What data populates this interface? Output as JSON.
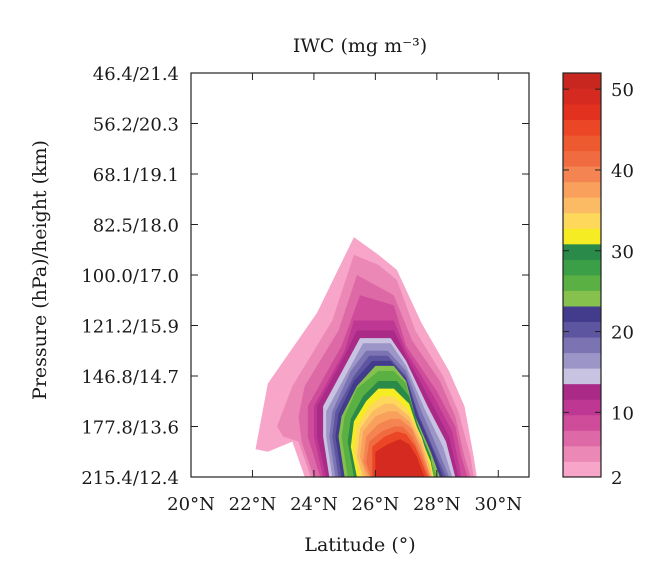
{
  "chart_data": {
    "type": "heatmap",
    "title": "IWC (mg m⁻³)",
    "xlabel": "Latitude (°)",
    "ylabel": "Pressure (hPa)/height (km)",
    "xlim": [
      20,
      31
    ],
    "x_ticks": [
      {
        "value": 20,
        "label": "20°N"
      },
      {
        "value": 22,
        "label": "22°N"
      },
      {
        "value": 24,
        "label": "24°N"
      },
      {
        "value": 26,
        "label": "26°N"
      },
      {
        "value": 28,
        "label": "28°N"
      },
      {
        "value": 30,
        "label": "30°N"
      }
    ],
    "y_ticks": [
      {
        "index": 0,
        "label": "46.4/21.4"
      },
      {
        "index": 1,
        "label": "56.2/20.3"
      },
      {
        "index": 2,
        "label": "68.1/19.1"
      },
      {
        "index": 3,
        "label": "82.5/18.0"
      },
      {
        "index": 4,
        "label": "100.0/17.0"
      },
      {
        "index": 5,
        "label": "121.2/15.9"
      },
      {
        "index": 6,
        "label": "146.8/14.7"
      },
      {
        "index": 7,
        "label": "177.8/13.6"
      },
      {
        "index": 8,
        "label": "215.4/12.4"
      }
    ],
    "colorbar": {
      "min": 2,
      "max": 52,
      "tick_labels": [
        "2",
        "10",
        "20",
        "30",
        "40",
        "50"
      ],
      "tick_values": [
        2,
        10,
        20,
        30,
        40,
        50
      ],
      "colors": [
        "#f7a6c9",
        "#ec88b6",
        "#dd6aa7",
        "#cf4c9b",
        "#be3792",
        "#a92a87",
        "#c7c3e0",
        "#9c95c8",
        "#7c73b3",
        "#5e55a0",
        "#433b8c",
        "#86c14e",
        "#5bb044",
        "#3a9f46",
        "#2a8a4a",
        "#f6ec24",
        "#fdd85a",
        "#fbbb64",
        "#f8a05c",
        "#f48553",
        "#f06c40",
        "#ee5a30",
        "#eb4626",
        "#e2321f",
        "#d42a20",
        "#c8271f"
      ]
    },
    "contours": [
      {
        "level": 2,
        "polygon": [
          [
            22.1,
            7.45
          ],
          [
            22.5,
            6.15
          ],
          [
            24.1,
            4.75
          ],
          [
            25.3,
            3.25
          ],
          [
            26.1,
            3.6
          ],
          [
            26.7,
            3.9
          ],
          [
            27.5,
            4.95
          ],
          [
            28.4,
            5.9
          ],
          [
            28.9,
            6.6
          ],
          [
            29.2,
            7.6
          ],
          [
            29.3,
            8.0
          ],
          [
            29.2,
            8.0
          ],
          [
            23.7,
            8.0
          ],
          [
            23.3,
            7.3
          ],
          [
            22.5,
            7.5
          ]
        ]
      },
      {
        "level": 4,
        "polygon": [
          [
            22.8,
            7.0
          ],
          [
            23.3,
            6.2
          ],
          [
            24.6,
            4.9
          ],
          [
            25.3,
            3.6
          ],
          [
            26.1,
            3.8
          ],
          [
            26.7,
            4.1
          ],
          [
            27.3,
            5.1
          ],
          [
            28.2,
            6.0
          ],
          [
            28.7,
            6.7
          ],
          [
            29.1,
            7.6
          ],
          [
            29.2,
            8.0
          ],
          [
            23.9,
            8.0
          ],
          [
            23.5,
            7.3
          ],
          [
            23.0,
            7.2
          ]
        ]
      },
      {
        "level": 6,
        "polygon": [
          [
            23.5,
            6.8
          ],
          [
            23.7,
            6.2
          ],
          [
            24.8,
            5.1
          ],
          [
            25.4,
            4.0
          ],
          [
            26.0,
            4.2
          ],
          [
            26.6,
            4.4
          ],
          [
            27.2,
            5.3
          ],
          [
            28.1,
            6.1
          ],
          [
            28.6,
            6.8
          ],
          [
            28.9,
            7.6
          ],
          [
            29.1,
            8.0
          ],
          [
            24.0,
            8.0
          ],
          [
            23.6,
            7.3
          ]
        ]
      },
      {
        "level": 8,
        "polygon": [
          [
            23.8,
            6.6
          ],
          [
            24.9,
            5.4
          ],
          [
            25.5,
            4.4
          ],
          [
            26.6,
            4.6
          ],
          [
            27.0,
            5.4
          ],
          [
            28.0,
            6.3
          ],
          [
            28.6,
            7.0
          ],
          [
            28.8,
            7.6
          ],
          [
            29.0,
            8.0
          ],
          [
            24.2,
            8.0
          ],
          [
            23.8,
            7.2
          ]
        ]
      },
      {
        "level": 10,
        "polygon": [
          [
            24.0,
            6.6
          ],
          [
            25.0,
            5.5
          ],
          [
            25.3,
            4.9
          ],
          [
            26.6,
            4.9
          ],
          [
            27.0,
            5.5
          ],
          [
            27.9,
            6.4
          ],
          [
            28.5,
            7.1
          ],
          [
            28.8,
            8.0
          ],
          [
            24.3,
            8.0
          ],
          [
            24.0,
            7.2
          ]
        ]
      },
      {
        "level": 12,
        "polygon": [
          [
            24.1,
            6.6
          ],
          [
            25.0,
            5.6
          ],
          [
            25.4,
            5.1
          ],
          [
            26.6,
            5.1
          ],
          [
            27.0,
            5.6
          ],
          [
            27.8,
            6.5
          ],
          [
            28.4,
            7.2
          ],
          [
            28.7,
            8.0
          ],
          [
            24.4,
            8.0
          ],
          [
            24.1,
            7.2
          ]
        ]
      },
      {
        "level": 14,
        "polygon": [
          [
            24.3,
            6.6
          ],
          [
            25.1,
            5.7
          ],
          [
            25.5,
            5.25
          ],
          [
            26.5,
            5.25
          ],
          [
            27.0,
            5.7
          ],
          [
            27.7,
            6.6
          ],
          [
            28.3,
            7.3
          ],
          [
            28.6,
            8.0
          ],
          [
            24.5,
            8.0
          ],
          [
            24.3,
            7.2
          ]
        ]
      },
      {
        "level": 16,
        "polygon": [
          [
            24.4,
            6.7
          ],
          [
            25.2,
            5.8
          ],
          [
            25.6,
            5.35
          ],
          [
            26.5,
            5.35
          ],
          [
            27.0,
            5.8
          ],
          [
            27.6,
            6.65
          ],
          [
            28.2,
            7.4
          ],
          [
            28.5,
            8.0
          ],
          [
            24.6,
            8.0
          ],
          [
            24.4,
            7.2
          ]
        ]
      },
      {
        "level": 18,
        "polygon": [
          [
            24.6,
            6.7
          ],
          [
            25.2,
            5.9
          ],
          [
            25.7,
            5.5
          ],
          [
            26.4,
            5.5
          ],
          [
            27.0,
            5.9
          ],
          [
            27.5,
            6.7
          ],
          [
            28.0,
            7.4
          ],
          [
            28.4,
            8.0
          ],
          [
            24.7,
            8.0
          ],
          [
            24.5,
            7.2
          ]
        ]
      },
      {
        "level": 20,
        "polygon": [
          [
            24.7,
            6.7
          ],
          [
            25.3,
            6.0
          ],
          [
            25.8,
            5.6
          ],
          [
            26.4,
            5.6
          ],
          [
            27.0,
            6.0
          ],
          [
            27.4,
            6.75
          ],
          [
            27.9,
            7.45
          ],
          [
            28.3,
            8.0
          ],
          [
            24.8,
            8.0
          ],
          [
            24.6,
            7.2
          ]
        ]
      },
      {
        "level": 22,
        "polygon": [
          [
            24.8,
            6.75
          ],
          [
            25.3,
            6.1
          ],
          [
            25.9,
            5.7
          ],
          [
            26.5,
            5.7
          ],
          [
            27.0,
            6.05
          ],
          [
            27.4,
            6.8
          ],
          [
            27.9,
            7.5
          ],
          [
            28.2,
            8.0
          ],
          [
            24.9,
            8.0
          ],
          [
            24.7,
            7.2
          ]
        ]
      },
      {
        "level": 24,
        "polygon": [
          [
            24.9,
            6.8
          ],
          [
            25.4,
            6.2
          ],
          [
            26.0,
            5.8
          ],
          [
            26.6,
            5.8
          ],
          [
            27.0,
            6.1
          ],
          [
            27.3,
            6.8
          ],
          [
            27.8,
            7.5
          ],
          [
            28.1,
            8.0
          ],
          [
            25.0,
            8.0
          ],
          [
            24.8,
            7.2
          ]
        ]
      },
      {
        "level": 26,
        "polygon": [
          [
            25.0,
            6.8
          ],
          [
            25.4,
            6.25
          ],
          [
            26.1,
            5.9
          ],
          [
            26.6,
            5.9
          ],
          [
            27.0,
            6.15
          ],
          [
            27.3,
            6.85
          ],
          [
            27.7,
            7.5
          ],
          [
            28.0,
            8.0
          ],
          [
            25.1,
            8.0
          ],
          [
            24.9,
            7.2
          ]
        ]
      },
      {
        "level": 28,
        "polygon": [
          [
            25.2,
            6.85
          ],
          [
            25.6,
            6.4
          ],
          [
            26.1,
            6.1
          ],
          [
            26.7,
            6.1
          ],
          [
            27.1,
            6.4
          ],
          [
            27.4,
            7.0
          ],
          [
            27.8,
            7.6
          ],
          [
            27.9,
            8.0
          ],
          [
            25.3,
            8.0
          ],
          [
            25.1,
            7.3
          ]
        ]
      },
      {
        "level": 30,
        "polygon": [
          [
            25.3,
            6.9
          ],
          [
            25.7,
            6.5
          ],
          [
            26.1,
            6.25
          ],
          [
            26.6,
            6.25
          ],
          [
            27.1,
            6.55
          ],
          [
            27.4,
            7.1
          ],
          [
            27.8,
            7.7
          ],
          [
            27.9,
            8.0
          ],
          [
            25.4,
            8.0
          ],
          [
            25.2,
            7.4
          ]
        ]
      },
      {
        "level": 32,
        "polygon": [
          [
            25.4,
            7.0
          ],
          [
            25.8,
            6.6
          ],
          [
            26.2,
            6.4
          ],
          [
            26.6,
            6.4
          ],
          [
            27.1,
            6.7
          ],
          [
            27.5,
            7.2
          ],
          [
            27.8,
            7.8
          ],
          [
            27.9,
            8.0
          ],
          [
            25.5,
            8.0
          ],
          [
            25.3,
            7.5
          ]
        ]
      },
      {
        "level": 34,
        "polygon": [
          [
            25.5,
            7.05
          ],
          [
            25.9,
            6.7
          ],
          [
            26.3,
            6.55
          ],
          [
            26.6,
            6.55
          ],
          [
            27.1,
            6.8
          ],
          [
            27.5,
            7.3
          ],
          [
            27.8,
            7.85
          ],
          [
            27.85,
            8.0
          ],
          [
            25.6,
            8.0
          ],
          [
            25.4,
            7.6
          ]
        ]
      },
      {
        "level": 36,
        "polygon": [
          [
            25.6,
            7.1
          ],
          [
            26.0,
            6.8
          ],
          [
            26.4,
            6.7
          ],
          [
            26.7,
            6.7
          ],
          [
            27.1,
            6.9
          ],
          [
            27.5,
            7.4
          ],
          [
            27.8,
            8.0
          ],
          [
            25.7,
            8.0
          ],
          [
            25.5,
            7.6
          ]
        ]
      },
      {
        "level": 38,
        "polygon": [
          [
            25.7,
            7.2
          ],
          [
            26.1,
            6.95
          ],
          [
            26.5,
            6.85
          ],
          [
            26.8,
            6.85
          ],
          [
            27.2,
            7.05
          ],
          [
            27.5,
            7.5
          ],
          [
            27.8,
            8.0
          ],
          [
            25.8,
            8.0
          ],
          [
            25.6,
            7.7
          ]
        ]
      },
      {
        "level": 40,
        "polygon": [
          [
            25.8,
            7.3
          ],
          [
            26.2,
            7.1
          ],
          [
            26.6,
            7.0
          ],
          [
            26.9,
            7.0
          ],
          [
            27.2,
            7.2
          ],
          [
            27.5,
            7.6
          ],
          [
            27.75,
            8.0
          ],
          [
            25.85,
            8.0
          ],
          [
            25.7,
            7.7
          ]
        ]
      },
      {
        "level": 44,
        "polygon": [
          [
            25.9,
            7.4
          ],
          [
            26.3,
            7.2
          ],
          [
            26.7,
            7.1
          ],
          [
            27.0,
            7.15
          ],
          [
            27.3,
            7.4
          ],
          [
            27.5,
            7.7
          ],
          [
            27.7,
            8.0
          ],
          [
            25.9,
            8.0
          ]
        ]
      },
      {
        "level": 48,
        "polygon": [
          [
            26.0,
            7.5
          ],
          [
            26.4,
            7.35
          ],
          [
            26.8,
            7.25
          ],
          [
            27.1,
            7.35
          ],
          [
            27.35,
            7.6
          ],
          [
            27.6,
            8.0
          ],
          [
            26.0,
            8.0
          ]
        ]
      }
    ]
  }
}
